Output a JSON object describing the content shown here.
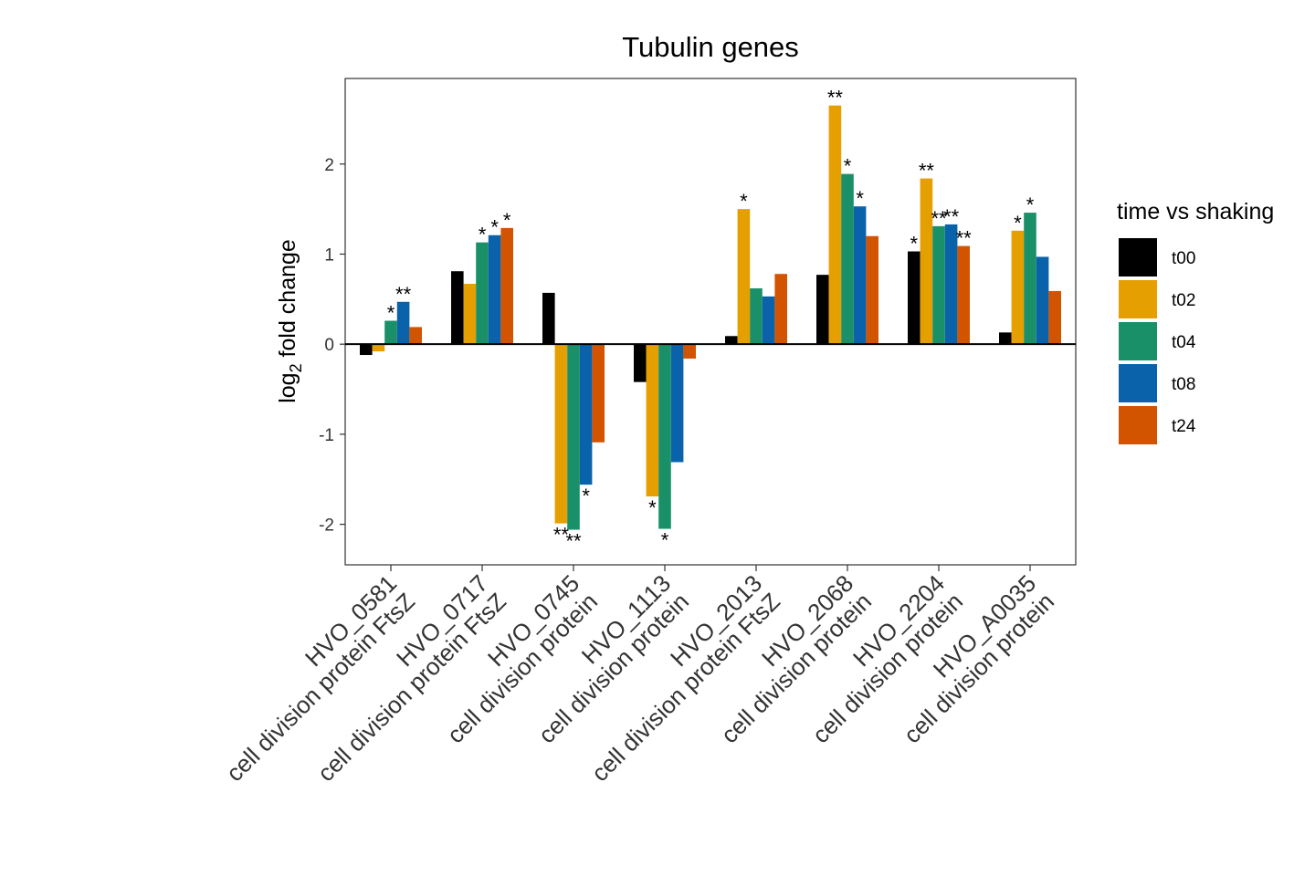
{
  "chart_data": {
    "type": "bar",
    "title": "Tubulin genes",
    "ylabel_main": "log",
    "ylabel_sub": "2",
    "ylabel_rest": " fold change",
    "xlabel": "",
    "ylim": [
      -2.45,
      2.95
    ],
    "yticks": [
      -2,
      -1,
      0,
      1,
      2
    ],
    "ytick_labels": [
      "-2",
      "-1",
      "0",
      "1",
      "2"
    ],
    "categories": [
      {
        "gene": "HVO_0581",
        "desc": "cell division protein FtsZ"
      },
      {
        "gene": "HVO_0717",
        "desc": "cell division protein FtsZ"
      },
      {
        "gene": "HVO_0745",
        "desc": "cell division protein"
      },
      {
        "gene": "HVO_1113",
        "desc": "cell division protein"
      },
      {
        "gene": "HVO_2013",
        "desc": "cell division protein FtsZ"
      },
      {
        "gene": "HVO_2068",
        "desc": "cell division protein"
      },
      {
        "gene": "HVO_2204",
        "desc": "cell division protein"
      },
      {
        "gene": "HVO_A0035",
        "desc": "cell division protein"
      }
    ],
    "legend": {
      "title": "time vs shaking",
      "position": "right"
    },
    "series": [
      {
        "name": "t00",
        "color": "#000000",
        "values": [
          -0.12,
          0.81,
          0.57,
          -0.42,
          0.09,
          0.77,
          1.03,
          0.13
        ],
        "significance": [
          "",
          "",
          "",
          "",
          "",
          "",
          "*",
          ""
        ]
      },
      {
        "name": "t02",
        "color": "#E69F00",
        "values": [
          -0.08,
          0.67,
          -1.99,
          -1.69,
          1.5,
          2.65,
          1.84,
          1.26
        ],
        "significance": [
          "",
          "",
          "**",
          "*",
          "*",
          "**",
          "**",
          "*"
        ]
      },
      {
        "name": "t04",
        "color": "#1A9068",
        "values": [
          0.26,
          1.13,
          -2.06,
          -2.05,
          0.62,
          1.89,
          1.31,
          1.46
        ],
        "significance": [
          "*",
          "*",
          "**",
          "*",
          "",
          "*",
          "**",
          "*"
        ]
      },
      {
        "name": "t08",
        "color": "#0A63AA",
        "values": [
          0.47,
          1.21,
          -1.56,
          -1.31,
          0.53,
          1.53,
          1.33,
          0.97
        ],
        "significance": [
          "**",
          "*",
          "*",
          "",
          "",
          "*",
          "**",
          ""
        ]
      },
      {
        "name": "t24",
        "color": "#D35400",
        "values": [
          0.19,
          1.29,
          -1.09,
          -0.16,
          0.78,
          1.2,
          1.09,
          0.59
        ],
        "significance": [
          "",
          "*",
          "",
          "",
          "",
          "",
          "**",
          ""
        ]
      }
    ]
  }
}
